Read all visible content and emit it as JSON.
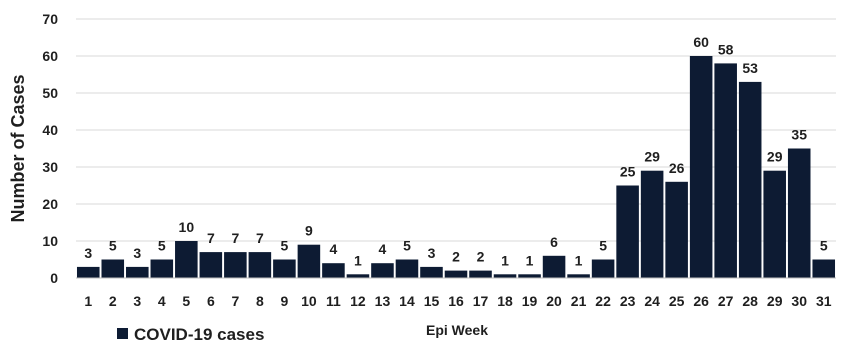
{
  "chart_data": {
    "type": "bar",
    "title": "",
    "xlabel": "Epi Week",
    "ylabel": "Number of Cases",
    "ylim": [
      0,
      70
    ],
    "yticks": [
      0,
      10,
      20,
      30,
      40,
      50,
      60,
      70
    ],
    "grid": "horizontal",
    "legend_placement": "bottom-left",
    "categories": [
      "1",
      "2",
      "3",
      "4",
      "5",
      "6",
      "7",
      "8",
      "9",
      "10",
      "11",
      "12",
      "13",
      "14",
      "15",
      "16",
      "17",
      "18",
      "19",
      "20",
      "21",
      "22",
      "23",
      "24",
      "25",
      "26",
      "27",
      "28",
      "29",
      "30",
      "31"
    ],
    "series": [
      {
        "name": "COVID-19 cases",
        "color": "#0d1b33",
        "values": [
          3,
          5,
          3,
          5,
          10,
          7,
          7,
          7,
          5,
          9,
          4,
          1,
          4,
          5,
          3,
          2,
          2,
          1,
          1,
          6,
          1,
          5,
          25,
          29,
          26,
          60,
          58,
          53,
          29,
          35,
          5
        ]
      }
    ]
  }
}
